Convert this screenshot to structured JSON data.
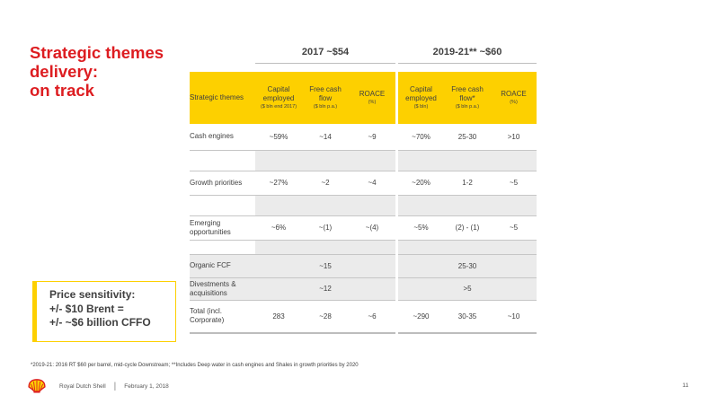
{
  "title": {
    "line1": "Strategic themes",
    "line2": "delivery:",
    "line3": "on track"
  },
  "periods": {
    "p2017": "2017 ~$54",
    "p2019": "2019-21** ~$60"
  },
  "headers": {
    "themes": "Strategic themes",
    "cap2017": "Capital employed",
    "cap2017_unit": "($ bln end 2017)",
    "fcf2017": "Free cash flow",
    "fcf2017_unit": "($ bln p.a.)",
    "roace2017": "ROACE",
    "roace2017_unit": "(%)",
    "cap2019": "Capital employed",
    "cap2019_unit": "($ bln)",
    "fcf2019": "Free cash flow*",
    "fcf2019_unit": "($ bln p.a.)",
    "roace2019": "ROACE",
    "roace2019_unit": "(%)"
  },
  "rows": {
    "cash": {
      "label": "Cash engines",
      "cap2017": "~59%",
      "fcf2017": "~14",
      "roace2017": "~9",
      "cap2019": "~70%",
      "fcf2019": "25-30",
      "roace2019": ">10"
    },
    "growth": {
      "label": "Growth priorities",
      "cap2017": "~27%",
      "fcf2017": "~2",
      "roace2017": "~4",
      "cap2019": "~20%",
      "fcf2019": "1-2",
      "roace2019": "~5"
    },
    "emerging": {
      "label": "Emerging opportunities",
      "cap2017": "~6%",
      "fcf2017": "~(1)",
      "roace2017": "~(4)",
      "cap2019": "~5%",
      "fcf2019": "(2) - (1)",
      "roace2019": "~5"
    },
    "organic": {
      "label": "Organic FCF",
      "fcf2017": "~15",
      "fcf2019": "25-30"
    },
    "divest": {
      "label": "Divestments & acquisitions",
      "fcf2017": "~12",
      "fcf2019": ">5"
    },
    "total": {
      "label": "Total (incl. Corporate)",
      "cap2017": "283",
      "fcf2017": "~28",
      "roace2017": "~6",
      "cap2019": "~290",
      "fcf2019": "30-35",
      "roace2019": "~10"
    }
  },
  "sensitivity": {
    "line1": "Price sensitivity:",
    "line2": "+/- $10 Brent =",
    "line3": "+/- ~$6 billion CFFO"
  },
  "footnote": "*2019-21: 2016 RT $60 per barrel, mid-cycle Downstream; **Includes Deep water in cash engines and Shales in growth priorities by 2020",
  "footer": {
    "company": "Royal Dutch Shell",
    "date": "February 1, 2018",
    "page": "11"
  },
  "colors": {
    "accent_red": "#dd1d21",
    "accent_yellow": "#fdd000",
    "row_shade": "#ebebeb"
  },
  "icons": {
    "logo": "shell-pecten-logo"
  }
}
